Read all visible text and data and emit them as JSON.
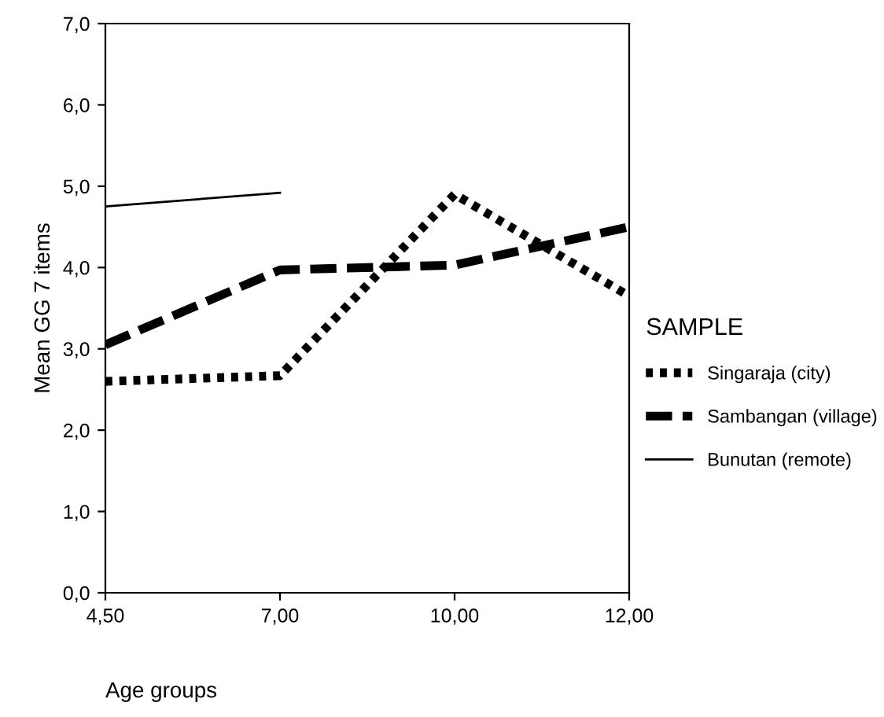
{
  "chart_data": {
    "type": "line",
    "xlabel": "Age groups",
    "ylabel": "Mean GG 7 items",
    "legend_title": "SAMPLE",
    "categories": [
      "4,50",
      "7,00",
      "10,00",
      "12,00"
    ],
    "series": [
      {
        "name": "Singaraja (city)",
        "color": "#000000",
        "values": [
          2.6,
          2.67,
          4.9,
          3.65
        ],
        "line_style": "dotted"
      },
      {
        "name": "Sambangan (village)",
        "color": "#000000",
        "values": [
          3.05,
          3.97,
          4.03,
          4.5
        ],
        "line_style": "dashed"
      },
      {
        "name": "Bunutan (remote)",
        "color": "#000000",
        "values": [
          4.75,
          4.92,
          null,
          null
        ],
        "line_style": "solid"
      }
    ],
    "ylim": [
      0,
      7
    ],
    "yticks": [
      {
        "value": 0,
        "label": "0,0"
      },
      {
        "value": 1,
        "label": "1,0"
      },
      {
        "value": 2,
        "label": "2,0"
      },
      {
        "value": 3,
        "label": "3,0"
      },
      {
        "value": 4,
        "label": "4,0"
      },
      {
        "value": 5,
        "label": "5,0"
      },
      {
        "value": 6,
        "label": "6,0"
      },
      {
        "value": 7,
        "label": "7,0"
      }
    ],
    "grid": false,
    "legend": "right",
    "marker": "none"
  }
}
